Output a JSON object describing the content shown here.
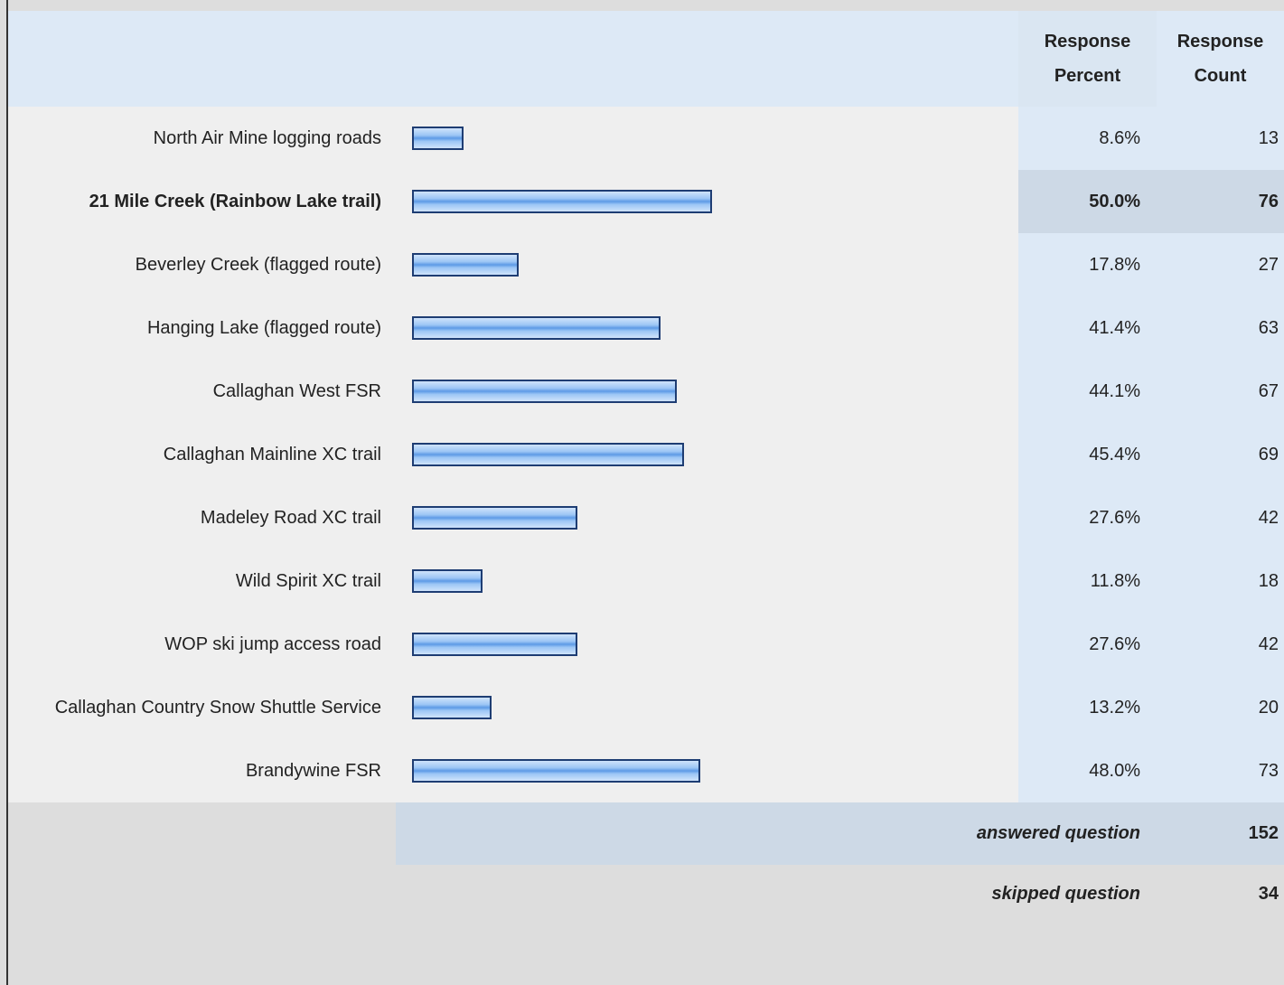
{
  "table": {
    "header": {
      "percent": "Response Percent",
      "count": "Response Count"
    },
    "rows": [
      {
        "label": "North Air Mine logging roads",
        "percent": 8.6,
        "percent_label": "8.6%",
        "count": 13
      },
      {
        "label": "21 Mile Creek (Rainbow Lake trail)",
        "percent": 50.0,
        "percent_label": "50.0%",
        "count": 76,
        "bold": true
      },
      {
        "label": "Beverley Creek (flagged route)",
        "percent": 17.8,
        "percent_label": "17.8%",
        "count": 27
      },
      {
        "label": "Hanging Lake (flagged route)",
        "percent": 41.4,
        "percent_label": "41.4%",
        "count": 63
      },
      {
        "label": "Callaghan West FSR",
        "percent": 44.1,
        "percent_label": "44.1%",
        "count": 67
      },
      {
        "label": "Callaghan Mainline XC trail",
        "percent": 45.4,
        "percent_label": "45.4%",
        "count": 69
      },
      {
        "label": "Madeley Road XC trail",
        "percent": 27.6,
        "percent_label": "27.6%",
        "count": 42
      },
      {
        "label": "Wild Spirit XC trail",
        "percent": 11.8,
        "percent_label": "11.8%",
        "count": 18
      },
      {
        "label": "WOP ski jump access road",
        "percent": 27.6,
        "percent_label": "27.6%",
        "count": 42
      },
      {
        "label": "Callaghan Country Snow Shuttle Service",
        "percent": 13.2,
        "percent_label": "13.2%",
        "count": 20
      },
      {
        "label": "Brandywine FSR",
        "percent": 48.0,
        "percent_label": "48.0%",
        "count": 73
      }
    ],
    "answered": {
      "label": "answered question",
      "count": 152
    },
    "skipped": {
      "label": "skipped question",
      "count": 34
    }
  }
}
